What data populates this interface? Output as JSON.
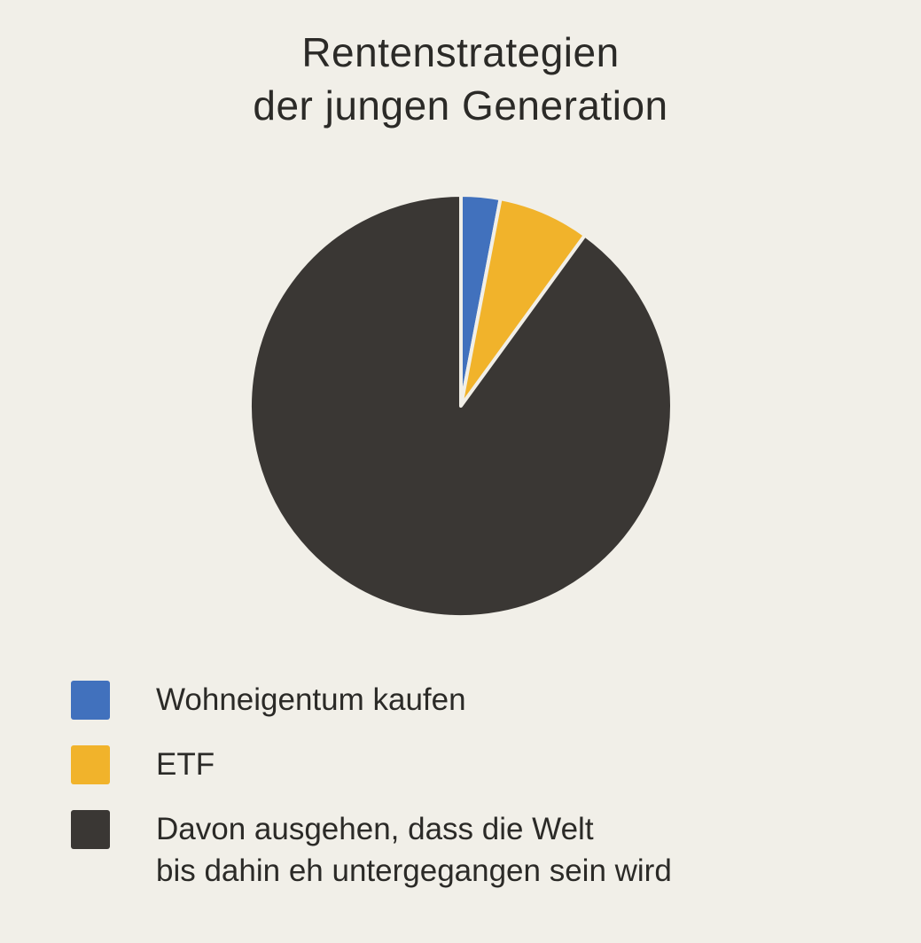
{
  "title": {
    "lines": [
      "Rentenstrategien",
      "der jungen Generation"
    ]
  },
  "chart_data": {
    "type": "pie",
    "title": "Rentenstrategien der jungen Generation",
    "categories": [
      "Wohneigentum kaufen",
      "ETF",
      "Davon ausgehen, dass die Welt bis dahin eh untergegangen sein wird"
    ],
    "values": [
      3,
      7,
      90
    ],
    "values_note": "estimated percent shares; no numeric labels shown in chart",
    "colors": [
      "#4171bd",
      "#f1b32b",
      "#3a3734"
    ],
    "start": "top",
    "direction": "clockwise",
    "separator_color": "#f1efe8",
    "background_color": "#f1efe8",
    "legend_position": "bottom-left"
  },
  "legend": {
    "items": [
      {
        "color": "#4171bd",
        "lines": [
          "Wohneigentum kaufen"
        ]
      },
      {
        "color": "#f1b32b",
        "lines": [
          "ETF"
        ]
      },
      {
        "color": "#3a3734",
        "lines": [
          "Davon ausgehen, dass die Welt",
          "bis dahin eh untergegangen sein wird"
        ]
      }
    ]
  }
}
